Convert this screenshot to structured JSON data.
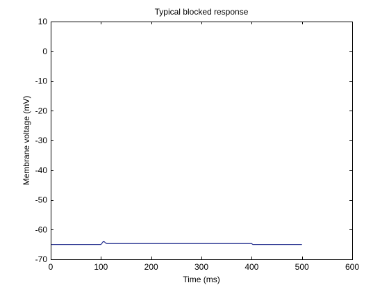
{
  "chart_data": {
    "type": "line",
    "title": "Typical blocked response",
    "xlabel": "Time (ms)",
    "ylabel": "Membrane voltage (mV)",
    "xlim": [
      0,
      600
    ],
    "ylim": [
      -70,
      10
    ],
    "xticks": [
      0,
      100,
      200,
      300,
      400,
      500,
      600
    ],
    "yticks": [
      10,
      0,
      -10,
      -20,
      -30,
      -40,
      -50,
      -60,
      -70
    ],
    "grid": false,
    "box": true,
    "series": [
      {
        "color": "#1f2a8c",
        "x": [
          0,
          100,
          102,
          104,
          106,
          108,
          110,
          112,
          116,
          120,
          200,
          300,
          400,
          402,
          500
        ],
        "y": [
          -65,
          -65,
          -64.6,
          -64.1,
          -64.0,
          -64.3,
          -64.6,
          -64.7,
          -64.7,
          -64.7,
          -64.7,
          -64.7,
          -64.7,
          -65,
          -65
        ]
      }
    ]
  }
}
